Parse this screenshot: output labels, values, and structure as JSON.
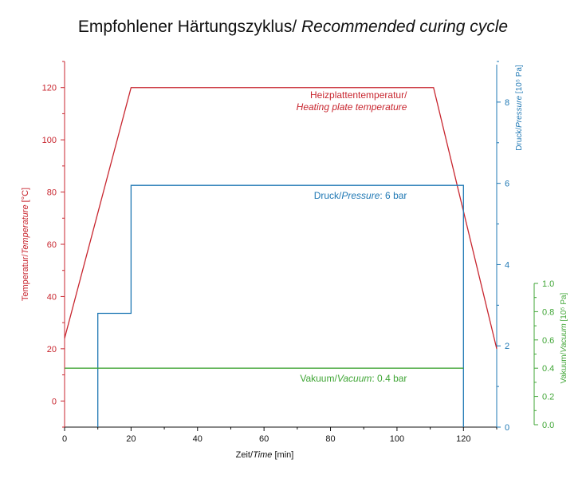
{
  "title": {
    "main": "Empfohlener Härtungszyklus/ ",
    "italic": "Recommended curing cycle"
  },
  "colors": {
    "temperature": "#c8262f",
    "pressure": "#1f78b4",
    "vacuum": "#3fa535",
    "axis": "#111111"
  },
  "chart_data": {
    "type": "line",
    "title": "Empfohlener Härtungszyklus/ Recommended curing cycle",
    "grid": false,
    "x_axis": {
      "label_regular": "Zeit/",
      "label_italic": "Time",
      "label_suffix": " [min]",
      "range": [
        0,
        130
      ],
      "ticks": [
        0,
        20,
        40,
        60,
        80,
        100,
        120
      ],
      "minor_ticks": [
        10,
        30,
        50,
        70,
        90,
        110,
        130
      ]
    },
    "y_left": {
      "label_regular": "Temperatur/",
      "label_italic": "Temperature",
      "label_suffix": " [°C]",
      "range": [
        -10,
        130
      ],
      "ticks": [
        0,
        20,
        40,
        60,
        80,
        100,
        120
      ],
      "minor_ticks": [
        -10,
        10,
        30,
        50,
        70,
        90,
        110,
        130
      ]
    },
    "y_right_pressure": {
      "label_regular": "Druck/",
      "label_italic": "Pressure",
      "label_suffix": " [10⁵ Pa]",
      "range": [
        0,
        9
      ],
      "ticks": [
        0,
        2,
        4,
        6,
        8
      ],
      "minor_ticks": [
        1,
        3,
        5,
        7,
        9
      ]
    },
    "y_right_vacuum": {
      "label_regular": "Vakuum/",
      "label_italic": "Vacuum",
      "label_suffix": " [10⁵ Pa]",
      "range": [
        0,
        1.0
      ],
      "ticks": [
        0.0,
        0.2,
        0.4,
        0.6,
        0.8,
        1.0
      ],
      "tick_labels": [
        "0.0",
        "0.2",
        "0.4",
        "0.6",
        "0.8",
        "1.0"
      ],
      "minor_ticks": [
        0.1,
        0.3,
        0.5,
        0.7,
        0.9
      ]
    },
    "series": [
      {
        "id": "temperature",
        "axis": "left",
        "points": [
          [
            0,
            24
          ],
          [
            20,
            120
          ],
          [
            111,
            120
          ],
          [
            130,
            20
          ]
        ],
        "label_line1": "Heizplattentemperatur/",
        "label_line2": "Heating plate temperature"
      },
      {
        "id": "pressure",
        "axis": "pressure",
        "points": [
          [
            10,
            0
          ],
          [
            10,
            2.8
          ],
          [
            20,
            2.8
          ],
          [
            20,
            5.95
          ],
          [
            120,
            5.95
          ],
          [
            120,
            0
          ]
        ],
        "label_regular": "Druck/",
        "label_italic": "Pressure",
        "label_suffix": ": 6 bar"
      },
      {
        "id": "vacuum",
        "axis": "vacuum",
        "points": [
          [
            0,
            0.4
          ],
          [
            120,
            0.4
          ]
        ],
        "label_regular": "Vakuum/",
        "label_italic": "Vacuum",
        "label_suffix": ": 0.4 bar"
      }
    ]
  }
}
